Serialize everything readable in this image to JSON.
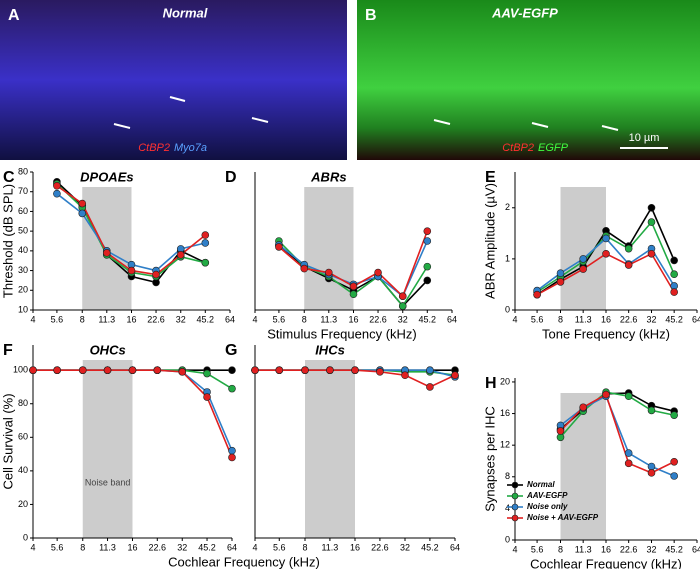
{
  "images": [
    {
      "letter": "A",
      "title": "Normal",
      "stain_labels": [
        "CtBP2",
        "Myo7a"
      ]
    },
    {
      "letter": "B",
      "title": "AAV-EGFP",
      "stain_labels": [
        "CtBP2",
        "EGFP"
      ],
      "scale_bar": "10 µm"
    }
  ],
  "chart_data": [
    {
      "type": "line",
      "letter": "C",
      "title": "DPOAEs",
      "ylabel": "Threshold (dB SPL)",
      "xlabel": "Stimulus Frequency (kHz)",
      "log_x": 2,
      "xlim": [
        4,
        64
      ],
      "xticks": [
        4,
        5.6,
        8,
        11.3,
        16,
        22.6,
        32,
        45.2,
        64
      ],
      "ylim": [
        10,
        80
      ],
      "yticks": [
        10,
        20,
        30,
        40,
        50,
        60,
        70,
        80
      ],
      "shade": [
        8,
        16
      ],
      "x": [
        5.6,
        8,
        11.3,
        16,
        22.6,
        32,
        45.2
      ],
      "series": [
        {
          "color": "#000000",
          "values": [
            75,
            63,
            38,
            27,
            24,
            40,
            34
          ]
        },
        {
          "color": "#22aa44",
          "values": [
            74,
            62,
            38,
            29,
            27,
            37,
            34
          ]
        },
        {
          "color": "#2f7fc8",
          "values": [
            69,
            59,
            40,
            33,
            30,
            41,
            44
          ]
        },
        {
          "color": "#e02020",
          "values": [
            73,
            64,
            39,
            30,
            28,
            38,
            48
          ]
        }
      ]
    },
    {
      "type": "line",
      "letter": "D",
      "title": "ABRs",
      "log_x": 2,
      "xlim": [
        4,
        64
      ],
      "xticks": [
        4,
        5.6,
        8,
        11.3,
        16,
        22.6,
        32,
        45.2,
        64
      ],
      "ylim": [
        10,
        80
      ],
      "shade": [
        8,
        16
      ],
      "x": [
        5.6,
        8,
        11.3,
        16,
        22.6,
        32,
        45.2
      ],
      "series": [
        {
          "color": "#000000",
          "values": [
            43,
            32,
            26,
            20,
            27,
            12,
            25
          ]
        },
        {
          "color": "#22aa44",
          "values": [
            45,
            32,
            27,
            18,
            27,
            12,
            32
          ]
        },
        {
          "color": "#2f7fc8",
          "values": [
            43,
            33,
            28,
            23,
            27,
            17,
            45
          ]
        },
        {
          "color": "#e02020",
          "values": [
            42,
            31,
            29,
            22,
            29,
            17,
            50
          ]
        }
      ]
    },
    {
      "type": "line",
      "letter": "E",
      "ylabel": "ABR Amplitude (µV)",
      "xlabel": "Tone Frequency (kHz)",
      "log_x": 2,
      "xlim": [
        4,
        64
      ],
      "xticks": [
        4,
        5.6,
        8,
        11.3,
        16,
        22.6,
        32,
        45.2,
        64
      ],
      "ylim": [
        0,
        2.7
      ],
      "yticks": [
        0,
        1,
        2
      ],
      "shade": [
        8,
        16
      ],
      "x": [
        5.6,
        8,
        11.3,
        16,
        22.6,
        32,
        45.2
      ],
      "series": [
        {
          "color": "#000000",
          "values": [
            0.3,
            0.6,
            0.85,
            1.55,
            1.25,
            2.0,
            0.97
          ]
        },
        {
          "color": "#22aa44",
          "values": [
            0.35,
            0.65,
            0.95,
            1.45,
            1.2,
            1.72,
            0.7
          ]
        },
        {
          "color": "#2f7fc8",
          "values": [
            0.38,
            0.72,
            1.0,
            1.4,
            0.9,
            1.2,
            0.47
          ]
        },
        {
          "color": "#e02020",
          "values": [
            0.3,
            0.55,
            0.8,
            1.1,
            0.88,
            1.1,
            0.35
          ]
        }
      ]
    },
    {
      "type": "line",
      "letter": "F",
      "title": "OHCs",
      "ylabel": "Cell Survival (%)",
      "xlabel": "Cochlear Frequency (kHz)",
      "annotation": "Noise band",
      "log_x": 2,
      "xlim": [
        4,
        64
      ],
      "xticks": [
        4,
        5.6,
        8,
        11.3,
        16,
        22.6,
        32,
        45.2,
        64
      ],
      "ylim": [
        0,
        115
      ],
      "yticks": [
        0,
        20,
        40,
        60,
        80,
        100
      ],
      "shade": [
        8,
        16
      ],
      "x": [
        4,
        5.6,
        8,
        11.3,
        16,
        22.6,
        32,
        45.2,
        64
      ],
      "series": [
        {
          "color": "#000000",
          "values": [
            100,
            100,
            100,
            100,
            100,
            100,
            100,
            100,
            100
          ]
        },
        {
          "color": "#22aa44",
          "values": [
            100,
            100,
            100,
            100,
            100,
            100,
            100,
            98,
            89
          ]
        },
        {
          "color": "#2f7fc8",
          "values": [
            100,
            100,
            100,
            100,
            100,
            100,
            99,
            87,
            52
          ]
        },
        {
          "color": "#e02020",
          "values": [
            100,
            100,
            100,
            100,
            100,
            100,
            99,
            84,
            48
          ]
        }
      ]
    },
    {
      "type": "line",
      "letter": "G",
      "title": "IHCs",
      "log_x": 2,
      "xlim": [
        4,
        64
      ],
      "xticks": [
        4,
        5.6,
        8,
        11.3,
        16,
        22.6,
        32,
        45.2,
        64
      ],
      "ylim": [
        0,
        115
      ],
      "shade": [
        8,
        16
      ],
      "x": [
        4,
        5.6,
        8,
        11.3,
        16,
        22.6,
        32,
        45.2,
        64
      ],
      "series": [
        {
          "color": "#000000",
          "values": [
            100,
            100,
            100,
            100,
            100,
            100,
            100,
            100,
            100
          ]
        },
        {
          "color": "#22aa44",
          "values": [
            100,
            100,
            100,
            100,
            100,
            100,
            99,
            99,
            97
          ]
        },
        {
          "color": "#2f7fc8",
          "values": [
            100,
            100,
            100,
            100,
            100,
            100,
            100,
            100,
            96
          ]
        },
        {
          "color": "#e02020",
          "values": [
            100,
            100,
            100,
            100,
            100,
            99,
            97,
            90,
            97
          ]
        }
      ]
    },
    {
      "type": "line",
      "letter": "H",
      "ylabel": "Synapses per IHC",
      "xlabel": "Cochlear Frequency (kHz)",
      "legend": "lower left",
      "log_x": 2,
      "xlim": [
        4,
        64
      ],
      "xticks": [
        4,
        5.6,
        8,
        11.3,
        16,
        22.6,
        32,
        45.2,
        64
      ],
      "ylim": [
        0,
        20.5
      ],
      "yticks": [
        0,
        4,
        8,
        12,
        16,
        20
      ],
      "shade": [
        8,
        16
      ],
      "x": [
        8,
        11.3,
        16,
        22.6,
        32,
        45.2
      ],
      "series": [
        {
          "name": "Normal",
          "color": "#000000",
          "values": [
            14,
            16.5,
            18.5,
            18.6,
            17,
            16.3
          ]
        },
        {
          "name": "AAV-EGFP",
          "color": "#22aa44",
          "values": [
            13,
            16.3,
            18.7,
            18.2,
            16.4,
            15.8
          ]
        },
        {
          "name": "Noise only",
          "color": "#2f7fc8",
          "values": [
            14.5,
            16.7,
            18.2,
            11,
            9.3,
            8.1
          ]
        },
        {
          "name": "Noise + AAV-EGFP",
          "color": "#e02020",
          "values": [
            13.8,
            16.8,
            18.4,
            9.7,
            8.5,
            9.9
          ]
        }
      ]
    }
  ]
}
